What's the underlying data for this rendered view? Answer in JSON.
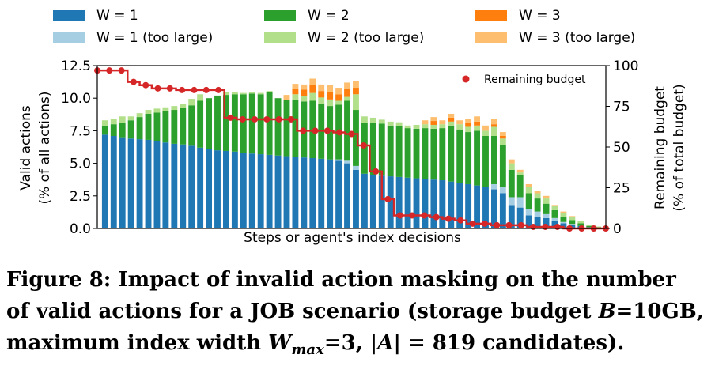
{
  "chart_data": {
    "type": "stacked-bar-with-line",
    "xlabel": "Steps or agent's index decisions",
    "ylabel_left": [
      "Valid actions",
      "(% of all actions)"
    ],
    "ylabel_right": [
      "Remaining budget",
      "(% of total budget)"
    ],
    "ylim_left": [
      0,
      12.5
    ],
    "ylim_right": [
      0,
      100
    ],
    "yticks_left": [
      "0.0",
      "2.5",
      "5.0",
      "7.5",
      "10.0",
      "12.5"
    ],
    "yticks_right": [
      "0",
      "25",
      "50",
      "75",
      "100"
    ],
    "legend": [
      {
        "label": "W = 1",
        "color": "#1f77b4"
      },
      {
        "label": "W = 2",
        "color": "#2ca02c"
      },
      {
        "label": "W = 3",
        "color": "#ff7f0e"
      },
      {
        "label": "W = 1 (too large)",
        "color": "#a6cee3"
      },
      {
        "label": "W = 2 (too large)",
        "color": "#b2df8a"
      },
      {
        "label": "W = 3 (too large)",
        "color": "#fdbf6f"
      }
    ],
    "line_legend": {
      "label": "Remaining budget",
      "color": "#d62728"
    },
    "series": [
      {
        "name": "W = 1",
        "color": "#1f77b4",
        "values": [
          7.2,
          7.1,
          7.0,
          6.9,
          6.85,
          6.8,
          6.7,
          6.6,
          6.5,
          6.45,
          6.35,
          6.2,
          6.1,
          6.0,
          5.95,
          5.9,
          5.8,
          5.75,
          5.7,
          5.65,
          5.6,
          5.55,
          5.5,
          5.45,
          5.4,
          5.35,
          5.3,
          5.2,
          5.0,
          4.5,
          4.2,
          4.1,
          4.05,
          4.0,
          3.95,
          3.9,
          3.85,
          3.8,
          3.75,
          3.7,
          3.6,
          3.5,
          3.4,
          3.3,
          3.2,
          3.0,
          2.7,
          1.8,
          1.6,
          1.0,
          0.9,
          0.8,
          0.6,
          0.4,
          0.3,
          0.2,
          0.1,
          0.05
        ]
      },
      {
        "name": "W = 1 (too large)",
        "color": "#a6cee3",
        "values": [
          0,
          0,
          0,
          0,
          0,
          0,
          0,
          0,
          0,
          0,
          0,
          0,
          0,
          0,
          0,
          0,
          0,
          0,
          0,
          0,
          0,
          0,
          0,
          0,
          0,
          0,
          0,
          0.1,
          0.2,
          0.3,
          0,
          0,
          0,
          0,
          0,
          0,
          0,
          0,
          0,
          0,
          0,
          0,
          0,
          0,
          0,
          0.4,
          0.5,
          0.6,
          0.8,
          0.5,
          0.4,
          0.3,
          0.2,
          0.1,
          0.05,
          0,
          0,
          0
        ]
      },
      {
        "name": "W = 2",
        "color": "#2ca02c",
        "values": [
          0.7,
          0.9,
          1.1,
          1.4,
          1.7,
          2.0,
          2.2,
          2.4,
          2.6,
          2.8,
          3.1,
          3.6,
          3.9,
          4.2,
          4.3,
          4.4,
          4.5,
          4.6,
          4.6,
          4.8,
          4.4,
          4.3,
          4.4,
          4.3,
          4.4,
          4.2,
          4.1,
          4.2,
          4.6,
          4.3,
          3.9,
          4.0,
          4.0,
          3.9,
          3.9,
          3.8,
          3.8,
          3.9,
          3.9,
          4.0,
          4.3,
          4.1,
          4.0,
          4.2,
          3.9,
          3.7,
          3.2,
          2.1,
          1.7,
          1.2,
          1.0,
          0.8,
          0.6,
          0.4,
          0.3,
          0.2,
          0.1,
          0.05
        ]
      },
      {
        "name": "W = 2 (too large)",
        "color": "#b2df8a",
        "values": [
          0.4,
          0.4,
          0.5,
          0.3,
          0.3,
          0.3,
          0.3,
          0.3,
          0.3,
          0.3,
          0.5,
          0.5,
          0,
          0,
          0.2,
          0.2,
          0.1,
          0.1,
          0.1,
          0.1,
          0,
          0,
          0.4,
          0.4,
          0.6,
          0.5,
          0.5,
          0.3,
          0.3,
          1.2,
          0.5,
          0.4,
          0.3,
          0.3,
          0.3,
          0.2,
          0.3,
          0.3,
          0.3,
          0.3,
          0.3,
          0.4,
          0.4,
          0.4,
          0.4,
          0.7,
          0.5,
          0.5,
          0.2,
          0.5,
          0.4,
          0.4,
          0.3,
          0.3,
          0.2,
          0.2,
          0.1,
          0.05
        ]
      },
      {
        "name": "W = 3",
        "color": "#ff7f0e",
        "values": [
          0,
          0,
          0,
          0,
          0,
          0,
          0,
          0,
          0,
          0,
          0,
          0,
          0,
          0,
          0,
          0,
          0,
          0,
          0,
          0,
          0,
          0,
          0.4,
          0.5,
          0.6,
          0.5,
          0.6,
          0.5,
          0.6,
          0.5,
          0,
          0,
          0,
          0,
          0,
          0,
          0,
          0,
          0.3,
          0,
          0.3,
          0,
          0.3,
          0.3,
          0,
          0.2,
          0.2,
          0,
          0,
          0,
          0,
          0,
          0,
          0,
          0,
          0,
          0,
          0
        ]
      },
      {
        "name": "W = 3 (too large)",
        "color": "#fdbf6f",
        "values": [
          0,
          0,
          0,
          0,
          0,
          0,
          0,
          0,
          0,
          0,
          0,
          0,
          0,
          0,
          0,
          0,
          0,
          0,
          0,
          0,
          0,
          0.4,
          0.4,
          0.4,
          0.5,
          0.5,
          0.5,
          0.5,
          0.5,
          0.5,
          0,
          0,
          0,
          0,
          0,
          0,
          0,
          0.3,
          0.3,
          0.3,
          0.3,
          0.3,
          0.3,
          0.4,
          0.4,
          0.4,
          0.3,
          0.3,
          0.2,
          0.2,
          0.2,
          0.2,
          0.1,
          0.1,
          0.1,
          0,
          0,
          0
        ]
      }
    ],
    "budget_points": [
      {
        "step": 0,
        "value": 97
      },
      {
        "step": 1,
        "value": 97
      },
      {
        "step": 2,
        "value": 97
      },
      {
        "step": 3,
        "value": 90
      },
      {
        "step": 4,
        "value": 88
      },
      {
        "step": 5,
        "value": 86
      },
      {
        "step": 6,
        "value": 86
      },
      {
        "step": 7,
        "value": 85
      },
      {
        "step": 8,
        "value": 85
      },
      {
        "step": 9,
        "value": 85
      },
      {
        "step": 10,
        "value": 85
      },
      {
        "step": 11,
        "value": 68
      },
      {
        "step": 12,
        "value": 67
      },
      {
        "step": 13,
        "value": 67
      },
      {
        "step": 14,
        "value": 67
      },
      {
        "step": 15,
        "value": 67
      },
      {
        "step": 16,
        "value": 67
      },
      {
        "step": 17,
        "value": 60
      },
      {
        "step": 18,
        "value": 60
      },
      {
        "step": 19,
        "value": 60
      },
      {
        "step": 20,
        "value": 59
      },
      {
        "step": 21,
        "value": 58
      },
      {
        "step": 22,
        "value": 51
      },
      {
        "step": 23,
        "value": 35
      },
      {
        "step": 24,
        "value": 18
      },
      {
        "step": 25,
        "value": 8
      },
      {
        "step": 26,
        "value": 8
      },
      {
        "step": 27,
        "value": 8
      },
      {
        "step": 28,
        "value": 7
      },
      {
        "step": 29,
        "value": 6
      },
      {
        "step": 30,
        "value": 5
      },
      {
        "step": 31,
        "value": 3
      },
      {
        "step": 32,
        "value": 3
      },
      {
        "step": 33,
        "value": 2
      },
      {
        "step": 34,
        "value": 2
      },
      {
        "step": 35,
        "value": 2
      },
      {
        "step": 36,
        "value": 1
      },
      {
        "step": 37,
        "value": 1
      },
      {
        "step": 38,
        "value": 1
      },
      {
        "step": 39,
        "value": 0
      },
      {
        "step": 40,
        "value": 0
      },
      {
        "step": 41,
        "value": 0
      },
      {
        "step": 42,
        "value": 0
      }
    ]
  },
  "caption": {
    "line1": "Figure 8: Impact of invalid action masking on the number",
    "line2_pre": "of valid actions for a JOB scenario (storage budget ",
    "line2_var": "B",
    "line2_post": "=10GB,",
    "line3_pre": "maximum index width ",
    "line3_var": "W",
    "line3_sub": "max",
    "line3_mid": "=3, |",
    "line3_var2": "A",
    "line3_post": "| = 819 candidates)."
  }
}
